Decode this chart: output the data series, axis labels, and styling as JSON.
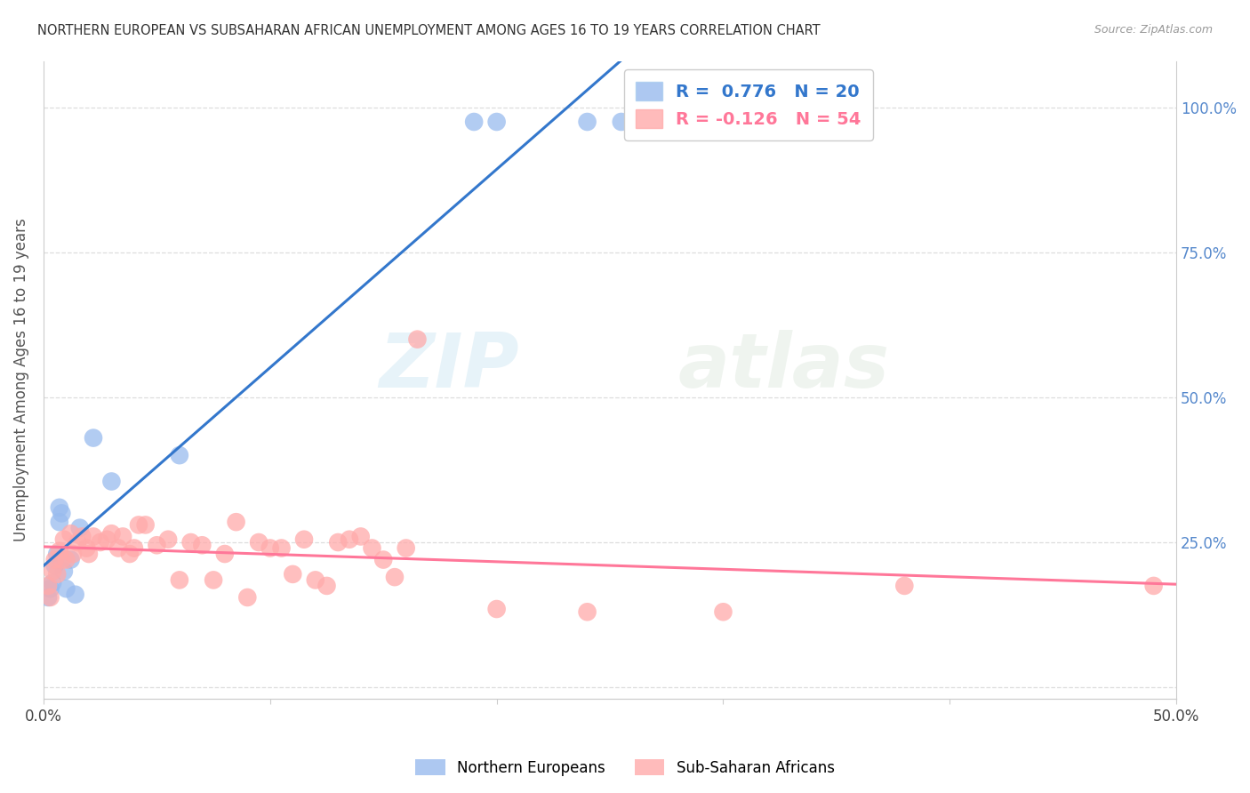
{
  "title": "NORTHERN EUROPEAN VS SUBSAHARAN AFRICAN UNEMPLOYMENT AMONG AGES 16 TO 19 YEARS CORRELATION CHART",
  "source": "Source: ZipAtlas.com",
  "ylabel": "Unemployment Among Ages 16 to 19 years",
  "xlim": [
    0.0,
    0.5
  ],
  "ylim": [
    -0.02,
    1.08
  ],
  "blue_R": 0.776,
  "blue_N": 20,
  "pink_R": -0.126,
  "pink_N": 54,
  "blue_color": "#99BBEE",
  "pink_color": "#FFAAAA",
  "blue_line_color": "#3377CC",
  "pink_line_color": "#FF7799",
  "watermark_zip": "ZIP",
  "watermark_atlas": "atlas",
  "blue_points_x": [
    0.002,
    0.003,
    0.004,
    0.005,
    0.006,
    0.007,
    0.007,
    0.008,
    0.009,
    0.01,
    0.012,
    0.014,
    0.016,
    0.022,
    0.03,
    0.06,
    0.19,
    0.2,
    0.24,
    0.255
  ],
  "blue_points_y": [
    0.155,
    0.17,
    0.18,
    0.21,
    0.23,
    0.285,
    0.31,
    0.3,
    0.2,
    0.17,
    0.22,
    0.16,
    0.275,
    0.43,
    0.355,
    0.4,
    0.975,
    0.975,
    0.975,
    0.975
  ],
  "pink_points_x": [
    0.002,
    0.003,
    0.004,
    0.005,
    0.006,
    0.007,
    0.008,
    0.009,
    0.01,
    0.012,
    0.013,
    0.015,
    0.017,
    0.019,
    0.02,
    0.022,
    0.025,
    0.028,
    0.03,
    0.033,
    0.035,
    0.038,
    0.04,
    0.042,
    0.045,
    0.05,
    0.055,
    0.06,
    0.065,
    0.07,
    0.075,
    0.08,
    0.085,
    0.09,
    0.095,
    0.1,
    0.105,
    0.11,
    0.115,
    0.12,
    0.125,
    0.13,
    0.135,
    0.14,
    0.145,
    0.15,
    0.155,
    0.16,
    0.165,
    0.2,
    0.24,
    0.3,
    0.38,
    0.49
  ],
  "pink_points_y": [
    0.175,
    0.155,
    0.2,
    0.22,
    0.195,
    0.235,
    0.22,
    0.255,
    0.22,
    0.265,
    0.23,
    0.25,
    0.26,
    0.24,
    0.23,
    0.26,
    0.25,
    0.255,
    0.265,
    0.24,
    0.26,
    0.23,
    0.24,
    0.28,
    0.28,
    0.245,
    0.255,
    0.185,
    0.25,
    0.245,
    0.185,
    0.23,
    0.285,
    0.155,
    0.25,
    0.24,
    0.24,
    0.195,
    0.255,
    0.185,
    0.175,
    0.25,
    0.255,
    0.26,
    0.24,
    0.22,
    0.19,
    0.24,
    0.6,
    0.135,
    0.13,
    0.13,
    0.175,
    0.175
  ],
  "grid_color": "#DDDDDD",
  "background_color": "#FFFFFF",
  "ytick_positions": [
    0.0,
    0.25,
    0.5,
    0.75,
    1.0
  ],
  "ytick_labels": [
    "",
    "25.0%",
    "50.0%",
    "75.0%",
    "100.0%"
  ],
  "xtick_positions": [
    0.0,
    0.1,
    0.2,
    0.3,
    0.4,
    0.5
  ],
  "xtick_labels": [
    "0.0%",
    "",
    "",
    "",
    "",
    "50.0%"
  ]
}
